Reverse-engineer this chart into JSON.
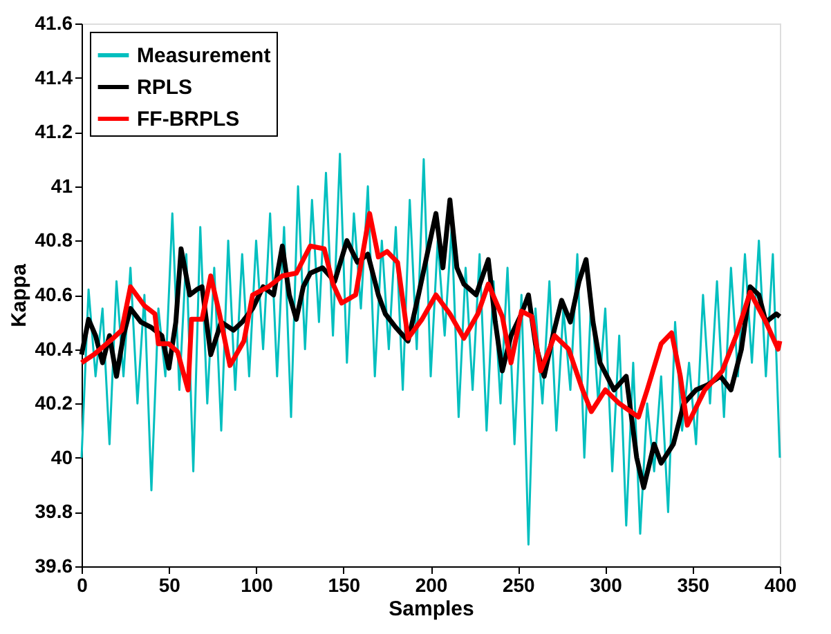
{
  "chart_data": {
    "type": "line",
    "xlabel": "Samples",
    "ylabel": "Kappa",
    "xlim": [
      0,
      400
    ],
    "xticks": [
      0,
      50,
      100,
      150,
      200,
      250,
      300,
      350,
      400
    ],
    "ylim": [
      39.6,
      41.6
    ],
    "yticks": [
      39.6,
      39.8,
      40,
      40.2,
      40.4,
      40.6,
      40.8,
      41,
      41.2,
      41.4,
      41.6
    ],
    "grid": false,
    "legend": "top left",
    "line_style": "solid",
    "marker": "none",
    "series": [
      {
        "name": "Measurement",
        "color": "#00bfbf",
        "x": [
          0,
          4,
          8,
          12,
          16,
          20,
          24,
          28,
          32,
          36,
          40,
          44,
          48,
          52,
          56,
          60,
          64,
          68,
          72,
          76,
          80,
          84,
          88,
          92,
          96,
          100,
          104,
          108,
          112,
          116,
          120,
          124,
          128,
          132,
          136,
          140,
          144,
          148,
          152,
          156,
          160,
          164,
          168,
          172,
          176,
          180,
          184,
          188,
          192,
          196,
          200,
          204,
          208,
          212,
          216,
          220,
          224,
          228,
          232,
          236,
          240,
          244,
          248,
          252,
          256,
          260,
          264,
          268,
          272,
          276,
          280,
          284,
          288,
          292,
          296,
          300,
          304,
          308,
          312,
          316,
          320,
          324,
          328,
          332,
          336,
          340,
          344,
          348,
          352,
          356,
          360,
          364,
          368,
          372,
          376,
          380,
          384,
          388,
          392,
          396,
          400
        ],
        "values": [
          40.0,
          40.62,
          40.3,
          40.55,
          40.05,
          40.65,
          40.3,
          40.7,
          40.2,
          40.6,
          39.88,
          40.55,
          40.3,
          40.9,
          40.25,
          40.75,
          39.95,
          40.85,
          40.2,
          40.7,
          40.1,
          40.8,
          40.25,
          40.75,
          40.3,
          40.8,
          40.4,
          40.9,
          40.3,
          40.85,
          40.15,
          41.0,
          40.4,
          40.95,
          40.5,
          41.05,
          40.45,
          41.12,
          40.35,
          40.9,
          40.55,
          41.0,
          40.3,
          40.8,
          40.4,
          40.85,
          40.25,
          40.95,
          40.4,
          41.1,
          40.3,
          40.8,
          40.45,
          40.85,
          40.15,
          40.7,
          40.25,
          40.75,
          40.1,
          40.65,
          40.2,
          40.7,
          40.05,
          40.6,
          39.68,
          40.55,
          40.2,
          40.65,
          40.1,
          40.55,
          40.25,
          40.75,
          40.0,
          40.6,
          40.2,
          40.55,
          39.95,
          40.45,
          39.75,
          40.35,
          39.72,
          40.2,
          39.95,
          40.3,
          39.8,
          40.5,
          40.1,
          40.35,
          40.05,
          40.6,
          40.2,
          40.65,
          40.15,
          40.7,
          40.3,
          40.75,
          40.35,
          40.8,
          40.3,
          40.75,
          40.0
        ]
      },
      {
        "name": "RPLS",
        "color": "#000000",
        "x": [
          0,
          4,
          8,
          12,
          16,
          20,
          24,
          28,
          34,
          40,
          46,
          50,
          54,
          57,
          62,
          66,
          69,
          74,
          80,
          87,
          92,
          98,
          104,
          110,
          115,
          119,
          123,
          127,
          131,
          138,
          145,
          152,
          158,
          164,
          170,
          174,
          180,
          187,
          193,
          198,
          203,
          207,
          211,
          215,
          219,
          226,
          233,
          237,
          241,
          246,
          252,
          256,
          260,
          265,
          270,
          275,
          280,
          285,
          289,
          293,
          297,
          305,
          312,
          318,
          322,
          328,
          332,
          339,
          345,
          352,
          359,
          366,
          372,
          378,
          383,
          388,
          392,
          398,
          400
        ],
        "values": [
          40.38,
          40.51,
          40.45,
          40.35,
          40.45,
          40.3,
          40.45,
          40.55,
          40.5,
          40.48,
          40.45,
          40.33,
          40.5,
          40.77,
          40.6,
          40.62,
          40.63,
          40.38,
          40.5,
          40.47,
          40.5,
          40.55,
          40.63,
          40.6,
          40.78,
          40.6,
          40.51,
          40.63,
          40.68,
          40.7,
          40.65,
          40.8,
          40.72,
          40.75,
          40.6,
          40.53,
          40.48,
          40.43,
          40.6,
          40.75,
          40.9,
          40.7,
          40.95,
          40.7,
          40.64,
          40.6,
          40.73,
          40.5,
          40.32,
          40.45,
          40.53,
          40.6,
          40.42,
          40.3,
          40.45,
          40.58,
          40.5,
          40.65,
          40.73,
          40.5,
          40.35,
          40.25,
          40.3,
          40.0,
          39.89,
          40.05,
          39.98,
          40.05,
          40.2,
          40.25,
          40.27,
          40.3,
          40.25,
          40.4,
          40.63,
          40.6,
          40.5,
          40.53,
          40.52
        ]
      },
      {
        "name": "FF-BRPLS",
        "color": "#ff0000",
        "x": [
          0,
          7,
          18,
          23,
          28,
          36,
          42,
          44,
          50,
          55,
          61,
          63,
          69,
          74,
          79,
          85,
          93,
          98,
          107,
          115,
          123,
          131,
          139,
          144,
          149,
          157,
          165,
          170,
          175,
          181,
          187,
          195,
          203,
          211,
          219,
          227,
          233,
          241,
          246,
          252,
          258,
          263,
          271,
          279,
          287,
          292,
          300,
          308,
          319,
          324,
          332,
          338,
          343,
          347,
          357,
          367,
          375,
          383,
          392,
          399,
          400
        ],
        "values": [
          40.35,
          40.38,
          40.44,
          40.47,
          40.63,
          40.56,
          40.53,
          40.42,
          40.42,
          40.39,
          40.25,
          40.51,
          40.51,
          40.67,
          40.53,
          40.34,
          40.43,
          40.6,
          40.63,
          40.67,
          40.68,
          40.78,
          40.77,
          40.64,
          40.57,
          40.6,
          40.9,
          40.74,
          40.76,
          40.72,
          40.44,
          40.51,
          40.6,
          40.53,
          40.44,
          40.53,
          40.64,
          40.52,
          40.35,
          40.54,
          40.52,
          40.32,
          40.45,
          40.4,
          40.25,
          40.17,
          40.25,
          40.2,
          40.15,
          40.25,
          40.42,
          40.46,
          40.3,
          40.12,
          40.25,
          40.32,
          40.45,
          40.61,
          40.5,
          40.4,
          40.43
        ]
      }
    ]
  }
}
